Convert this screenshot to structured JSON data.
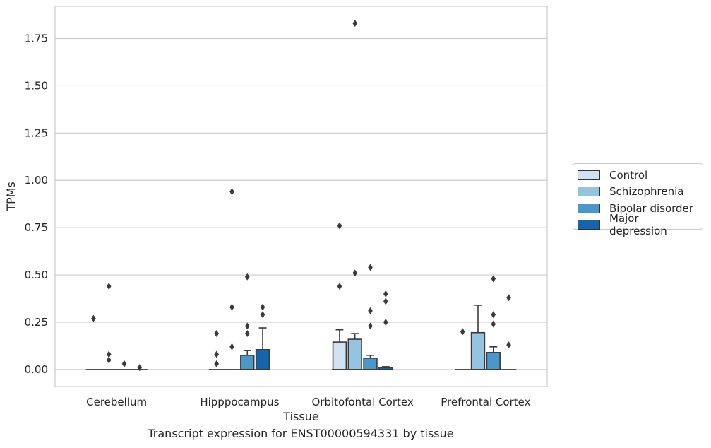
{
  "caption": "Transcript expression for ENST00000594331 by tissue",
  "chart_data": {
    "type": "box",
    "xlabel": "Tissue",
    "ylabel": "TPMs",
    "ylim": [
      -0.09,
      1.92
    ],
    "yticks": [
      0.0,
      0.25,
      0.5,
      0.75,
      1.0,
      1.25,
      1.5,
      1.75
    ],
    "ytick_labels": [
      "0.00",
      "0.25",
      "0.50",
      "0.75",
      "1.00",
      "1.25",
      "1.50",
      "1.75"
    ],
    "grid": "horizontal",
    "legend_position": "right",
    "categories": [
      "Cerebellum",
      "Hipppocampus",
      "Orbitofontal Cortex",
      "Prefrontal Cortex"
    ],
    "series": [
      {
        "name": "Control",
        "color": "#d0e1f2"
      },
      {
        "name": "Schizophrenia",
        "color": "#94c4df"
      },
      {
        "name": "Bipolar disorder",
        "color": "#4a98c9"
      },
      {
        "name": "Major depression",
        "color": "#1764ab"
      }
    ],
    "boxes": [
      {
        "category": "Cerebellum",
        "series": "Control",
        "q1": 0,
        "median": 0,
        "q3": 0,
        "whisker_low": 0,
        "whisker_high": 0,
        "outliers": [
          0.27
        ]
      },
      {
        "category": "Cerebellum",
        "series": "Schizophrenia",
        "q1": 0,
        "median": 0,
        "q3": 0,
        "whisker_low": 0,
        "whisker_high": 0,
        "outliers": [
          0.44,
          0.08,
          0.05
        ]
      },
      {
        "category": "Cerebellum",
        "series": "Bipolar disorder",
        "q1": 0,
        "median": 0,
        "q3": 0,
        "whisker_low": 0,
        "whisker_high": 0,
        "outliers": [
          0.03
        ]
      },
      {
        "category": "Cerebellum",
        "series": "Major depression",
        "q1": 0,
        "median": 0,
        "q3": 0,
        "whisker_low": 0,
        "whisker_high": 0,
        "outliers": [
          0.01
        ]
      },
      {
        "category": "Hipppocampus",
        "series": "Control",
        "q1": 0,
        "median": 0,
        "q3": 0,
        "whisker_low": 0,
        "whisker_high": 0,
        "outliers": [
          0.19,
          0.08,
          0.03
        ]
      },
      {
        "category": "Hipppocampus",
        "series": "Schizophrenia",
        "q1": 0,
        "median": 0,
        "q3": 0,
        "whisker_low": 0,
        "whisker_high": 0,
        "outliers": [
          0.94,
          0.33,
          0.12
        ]
      },
      {
        "category": "Hipppocampus",
        "series": "Bipolar disorder",
        "q1": 0,
        "median": 0,
        "q3": 0.075,
        "whisker_low": 0,
        "whisker_high": 0.1,
        "outliers": [
          0.49,
          0.23,
          0.19
        ]
      },
      {
        "category": "Hipppocampus",
        "series": "Major depression",
        "q1": 0,
        "median": 0,
        "q3": 0.105,
        "whisker_low": 0,
        "whisker_high": 0.22,
        "outliers": [
          0.33,
          0.29
        ]
      },
      {
        "category": "Orbitofontal Cortex",
        "series": "Control",
        "q1": 0,
        "median": 0,
        "q3": 0.145,
        "whisker_low": 0,
        "whisker_high": 0.21,
        "outliers": [
          0.76,
          0.44
        ]
      },
      {
        "category": "Orbitofontal Cortex",
        "series": "Schizophrenia",
        "q1": 0,
        "median": 0,
        "q3": 0.16,
        "whisker_low": 0,
        "whisker_high": 0.19,
        "outliers": [
          1.83,
          0.51
        ]
      },
      {
        "category": "Orbitofontal Cortex",
        "series": "Bipolar disorder",
        "q1": 0,
        "median": 0,
        "q3": 0.06,
        "whisker_low": 0,
        "whisker_high": 0.075,
        "outliers": [
          0.54,
          0.31,
          0.23
        ]
      },
      {
        "category": "Orbitofontal Cortex",
        "series": "Major depression",
        "q1": 0,
        "median": 0,
        "q3": 0.01,
        "whisker_low": 0,
        "whisker_high": 0.015,
        "outliers": [
          0.4,
          0.36,
          0.25
        ]
      },
      {
        "category": "Prefrontal Cortex",
        "series": "Control",
        "q1": 0,
        "median": 0,
        "q3": 0,
        "whisker_low": 0,
        "whisker_high": 0,
        "outliers": [
          0.2
        ]
      },
      {
        "category": "Prefrontal Cortex",
        "series": "Schizophrenia",
        "q1": 0,
        "median": 0,
        "q3": 0.195,
        "whisker_low": 0,
        "whisker_high": 0.34,
        "outliers": []
      },
      {
        "category": "Prefrontal Cortex",
        "series": "Bipolar disorder",
        "q1": 0,
        "median": 0,
        "q3": 0.09,
        "whisker_low": 0,
        "whisker_high": 0.12,
        "outliers": [
          0.48,
          0.29,
          0.24
        ]
      },
      {
        "category": "Prefrontal Cortex",
        "series": "Major depression",
        "q1": 0,
        "median": 0,
        "q3": 0,
        "whisker_low": 0,
        "whisker_high": 0,
        "outliers": [
          0.38,
          0.13
        ]
      }
    ]
  }
}
